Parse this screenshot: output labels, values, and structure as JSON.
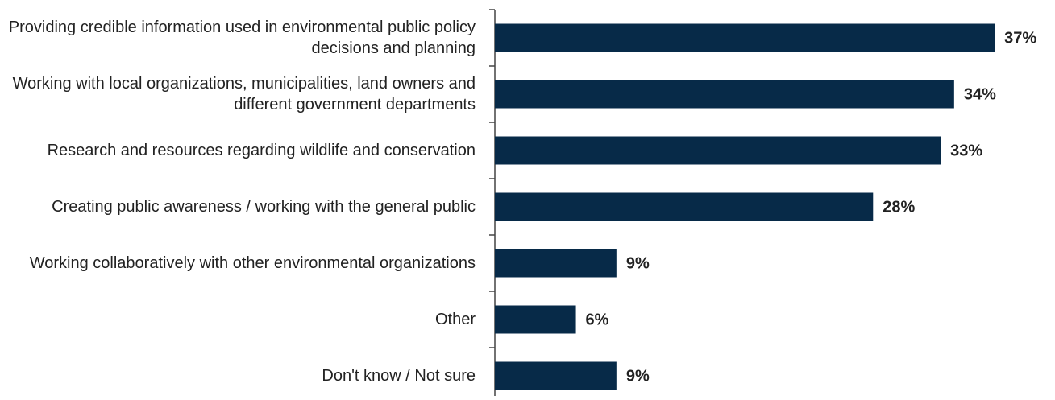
{
  "chart_data": {
    "type": "bar",
    "orientation": "horizontal",
    "categories": [
      "Providing credible information used in environmental public policy decisions and planning",
      "Working with local organizations, municipalities, land owners and different government departments",
      "Research and resources regarding wildlife  and conservation",
      "Creating public awareness / working with the general public",
      "Working collaboratively with other environmental organizations",
      "Other",
      "Don't know / Not sure"
    ],
    "values": [
      37,
      34,
      33,
      28,
      9,
      6,
      9
    ],
    "value_labels": [
      "37%",
      "34%",
      "33%",
      "28%",
      "9%",
      "6%",
      "9%"
    ],
    "color": "#072a48"
  }
}
